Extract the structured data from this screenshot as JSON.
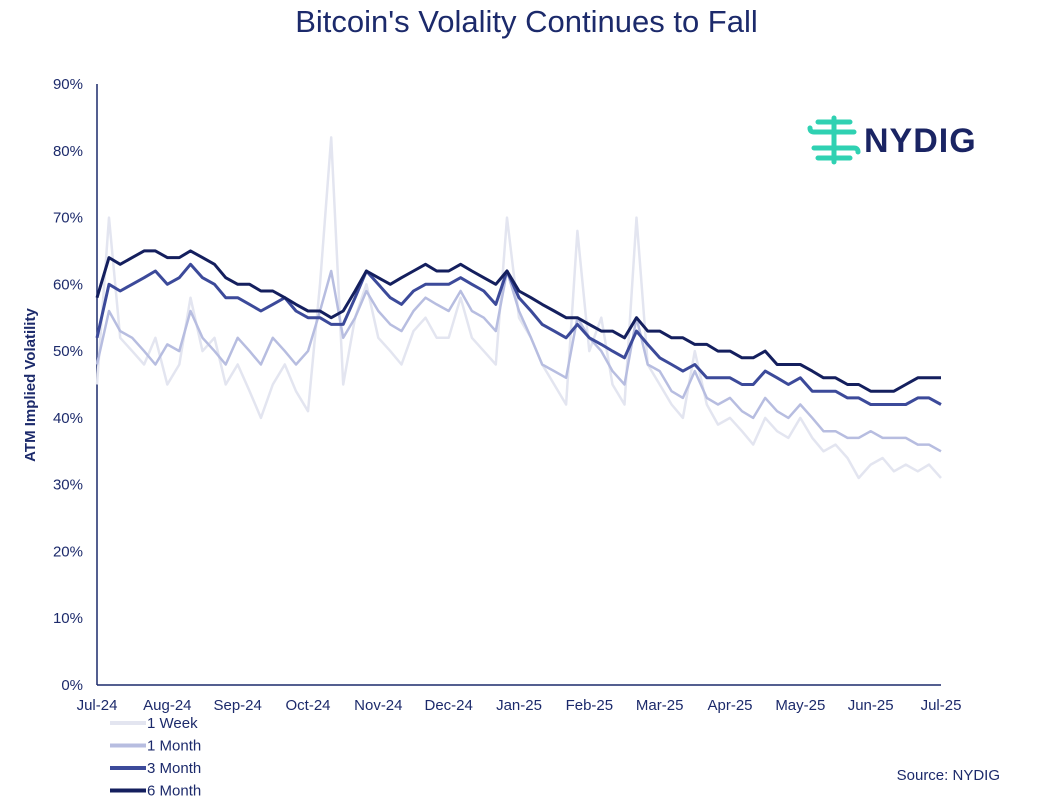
{
  "chart_data": {
    "type": "line",
    "title": "Bitcoin's Volality Continues to Fall",
    "ylabel": "ATM Implied Volatility",
    "xlabel": "",
    "ylim": [
      0,
      90
    ],
    "yticks": [
      "0%",
      "10%",
      "20%",
      "30%",
      "40%",
      "50%",
      "60%",
      "70%",
      "80%",
      "90%"
    ],
    "xlim": [
      0,
      12
    ],
    "xticks": [
      "Jul-24",
      "Aug-24",
      "Sep-24",
      "Oct-24",
      "Nov-24",
      "Dec-24",
      "Jan-25",
      "Feb-25",
      "Mar-25",
      "Apr-25",
      "May-25",
      "Jun-25",
      "Jul-25"
    ],
    "x": [
      0,
      0.17,
      0.33,
      0.5,
      0.67,
      0.83,
      1,
      1.17,
      1.33,
      1.5,
      1.67,
      1.83,
      2,
      2.17,
      2.33,
      2.5,
      2.67,
      2.83,
      3,
      3.17,
      3.33,
      3.5,
      3.67,
      3.83,
      4,
      4.17,
      4.33,
      4.5,
      4.67,
      4.83,
      5,
      5.17,
      5.33,
      5.5,
      5.67,
      5.83,
      6,
      6.17,
      6.33,
      6.5,
      6.67,
      6.83,
      7,
      7.17,
      7.33,
      7.5,
      7.67,
      7.83,
      8,
      8.17,
      8.33,
      8.5,
      8.67,
      8.83,
      9,
      9.17,
      9.33,
      9.5,
      9.67,
      9.83,
      10,
      10.17,
      10.33,
      10.5,
      10.67,
      10.83,
      11,
      11.17,
      11.33,
      11.5,
      11.67,
      11.83,
      12
    ],
    "series": [
      {
        "name": "1 Week",
        "color": "#e3e5f0",
        "values": [
          45,
          70,
          52,
          50,
          48,
          52,
          45,
          48,
          58,
          50,
          52,
          45,
          48,
          44,
          40,
          45,
          48,
          44,
          41,
          60,
          82,
          45,
          55,
          60,
          52,
          50,
          48,
          53,
          55,
          52,
          52,
          58,
          52,
          50,
          48,
          70,
          55,
          52,
          48,
          45,
          42,
          68,
          50,
          55,
          45,
          42,
          70,
          48,
          45,
          42,
          40,
          50,
          42,
          39,
          40,
          38,
          36,
          40,
          38,
          37,
          40,
          37,
          35,
          36,
          34,
          31,
          33,
          34,
          32,
          33,
          32,
          33,
          31
        ]
      },
      {
        "name": "1 Month",
        "color": "#b7bde0",
        "values": [
          48,
          56,
          53,
          52,
          50,
          48,
          51,
          50,
          56,
          52,
          50,
          48,
          52,
          50,
          48,
          52,
          50,
          48,
          50,
          56,
          62,
          52,
          55,
          59,
          56,
          54,
          53,
          56,
          58,
          57,
          56,
          59,
          56,
          55,
          53,
          62,
          56,
          52,
          48,
          47,
          46,
          55,
          52,
          50,
          47,
          45,
          55,
          48,
          47,
          44,
          43,
          47,
          43,
          42,
          43,
          41,
          40,
          43,
          41,
          40,
          42,
          40,
          38,
          38,
          37,
          37,
          38,
          37,
          37,
          37,
          36,
          36,
          35
        ]
      },
      {
        "name": "3 Month",
        "color": "#3c4a9a",
        "values": [
          52,
          60,
          59,
          60,
          61,
          62,
          60,
          61,
          63,
          61,
          60,
          58,
          58,
          57,
          56,
          57,
          58,
          56,
          55,
          55,
          54,
          54,
          58,
          62,
          60,
          58,
          57,
          59,
          60,
          60,
          60,
          61,
          60,
          59,
          57,
          62,
          58,
          56,
          54,
          53,
          52,
          54,
          52,
          51,
          50,
          49,
          53,
          51,
          49,
          48,
          47,
          48,
          46,
          46,
          46,
          45,
          45,
          47,
          46,
          45,
          46,
          44,
          44,
          44,
          43,
          43,
          42,
          42,
          42,
          42,
          43,
          43,
          42
        ]
      },
      {
        "name": "6 Month",
        "color": "#141f5e",
        "values": [
          58,
          64,
          63,
          64,
          65,
          65,
          64,
          64,
          65,
          64,
          63,
          61,
          60,
          60,
          59,
          59,
          58,
          57,
          56,
          56,
          55,
          56,
          59,
          62,
          61,
          60,
          61,
          62,
          63,
          62,
          62,
          63,
          62,
          61,
          60,
          62,
          59,
          58,
          57,
          56,
          55,
          55,
          54,
          53,
          53,
          52,
          55,
          53,
          53,
          52,
          52,
          51,
          51,
          50,
          50,
          49,
          49,
          50,
          48,
          48,
          48,
          47,
          46,
          46,
          45,
          45,
          44,
          44,
          44,
          45,
          46,
          46,
          46
        ]
      }
    ],
    "legend": [
      "1 Week",
      "1 Month",
      "3 Month",
      "6 Month"
    ],
    "legend_position": "bottom-left",
    "grid": false
  },
  "logo": {
    "text": "NYDIG",
    "color": "#2fd1b2"
  },
  "source_note": "Source: NYDIG"
}
